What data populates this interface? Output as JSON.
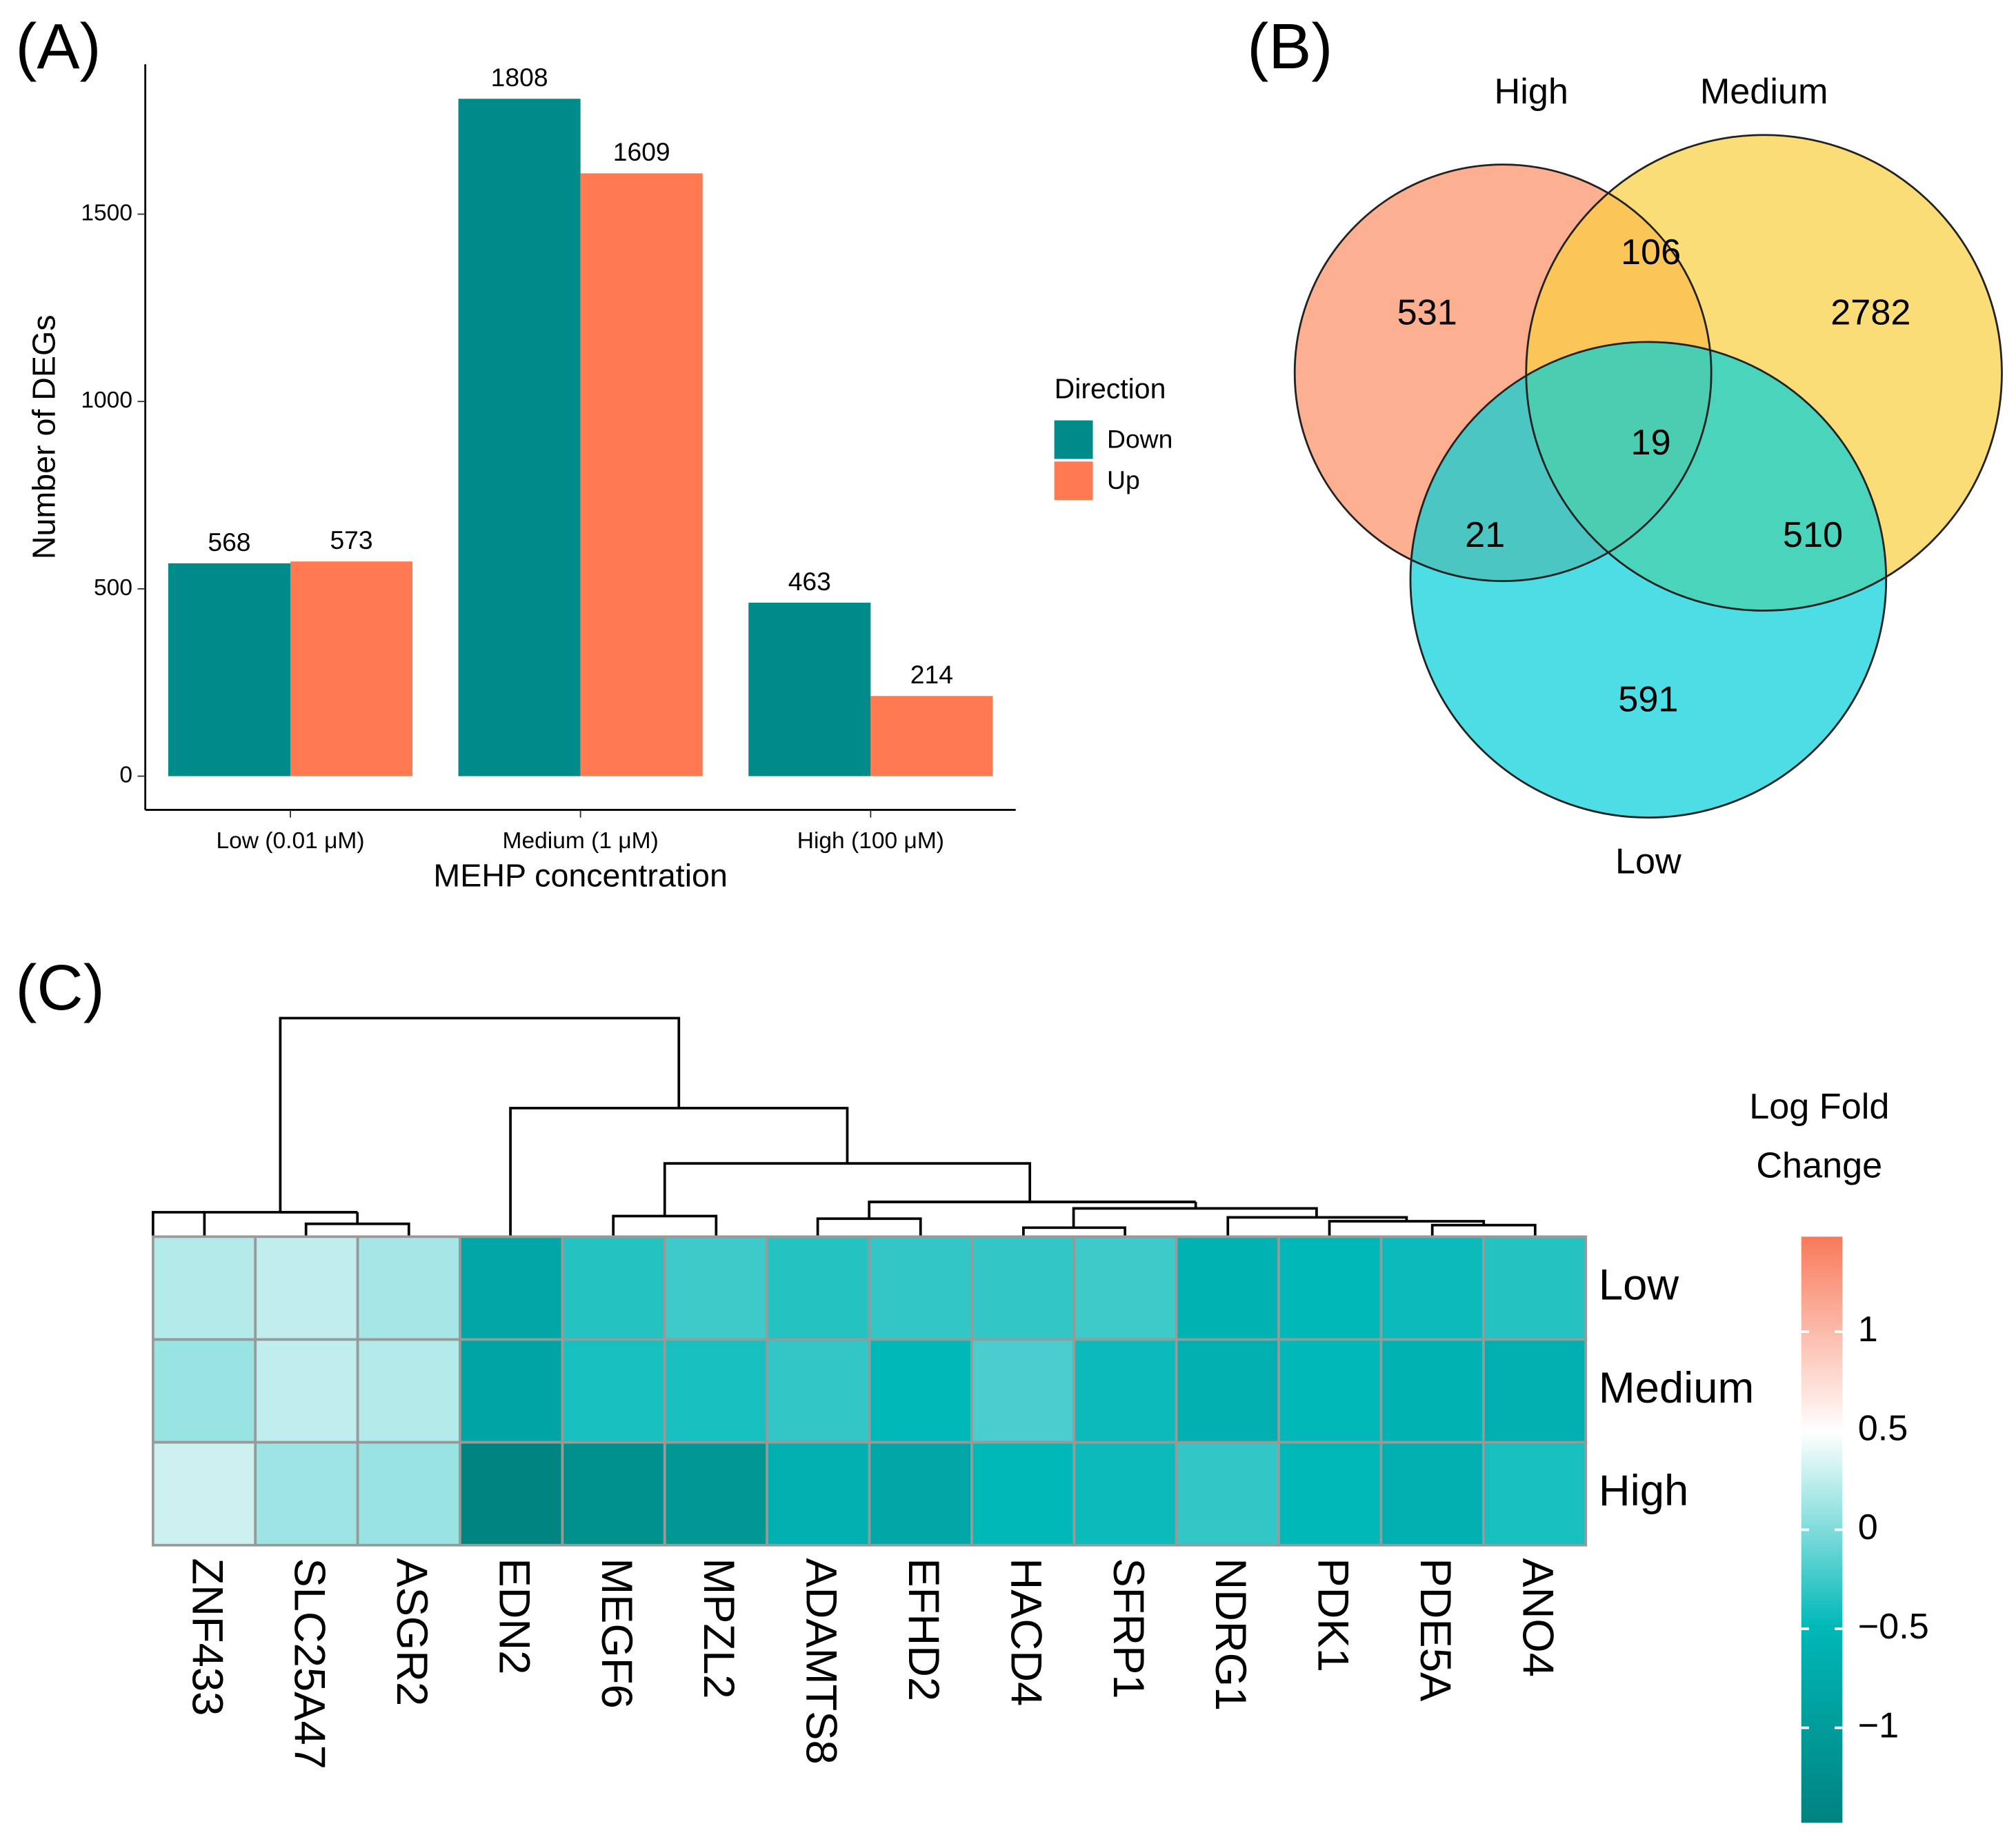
{
  "chart_data": [
    {
      "type": "bar",
      "panel_label": "(A)",
      "x_label": "MEHP concentration",
      "y_label": "Number of DEGs",
      "categories": [
        "Low (0.01 μM)",
        "Medium (1 μM)",
        "High (100 μM)"
      ],
      "series": [
        {
          "name": "Down",
          "color": "#008b8b",
          "values": [
            568,
            1808,
            463
          ]
        },
        {
          "name": "Up",
          "color": "#ff7a50",
          "values": [
            573,
            1609,
            214
          ]
        }
      ],
      "ylim": [
        -90,
        1900
      ],
      "yticks": [
        0,
        500,
        1000,
        1500
      ],
      "legend_title": "Direction",
      "legend": "right"
    },
    {
      "type": "venn",
      "panel_label": "(B)",
      "sets": [
        {
          "name": "High",
          "color": "#fc8d62"
        },
        {
          "name": "Medium",
          "color": "#f9cf3f"
        },
        {
          "name": "Low",
          "color": "#00d0d8"
        }
      ],
      "values": [
        531,
        2782,
        591,
        106,
        21,
        510,
        19
      ]
    },
    {
      "type": "heatmap",
      "panel_label": "(C)",
      "columns": [
        "ZNF433",
        "SLC25A47",
        "ASGR2",
        "EDN2",
        "MEGF6",
        "MPZL2",
        "ADAMTS8",
        "EFHD2",
        "HACD4",
        "SFRP1",
        "NDRG1",
        "PDK1",
        "PDE5A",
        "ANO4"
      ],
      "rows": [
        "Low",
        "Medium",
        "High"
      ],
      "values": [
        [
          0.2,
          0.25,
          0.15,
          -0.8,
          -0.35,
          -0.25,
          -0.35,
          -0.3,
          -0.3,
          -0.25,
          -0.6,
          -0.5,
          -0.45,
          -0.35
        ],
        [
          0.1,
          0.25,
          0.2,
          -0.85,
          -0.4,
          -0.4,
          -0.3,
          -0.5,
          -0.2,
          -0.45,
          -0.65,
          -0.5,
          -0.6,
          -0.65
        ],
        [
          0.3,
          0.12,
          0.1,
          -1.45,
          -1.2,
          -1.1,
          -0.65,
          -0.8,
          -0.5,
          -0.45,
          -0.3,
          -0.5,
          -0.65,
          -0.4
        ]
      ],
      "colorscale": [
        "#00827f",
        "#00b8b8",
        "#ffffff",
        "#f87a5a"
      ],
      "clim": [
        -1.48,
        1.48
      ],
      "colorbar_ticks": [
        {
          "value": -1,
          "label": "−1"
        },
        {
          "value": -0.5,
          "label": "−0.5"
        },
        0,
        0.5,
        1
      ],
      "legend_title": "Log Fold Change"
    }
  ]
}
